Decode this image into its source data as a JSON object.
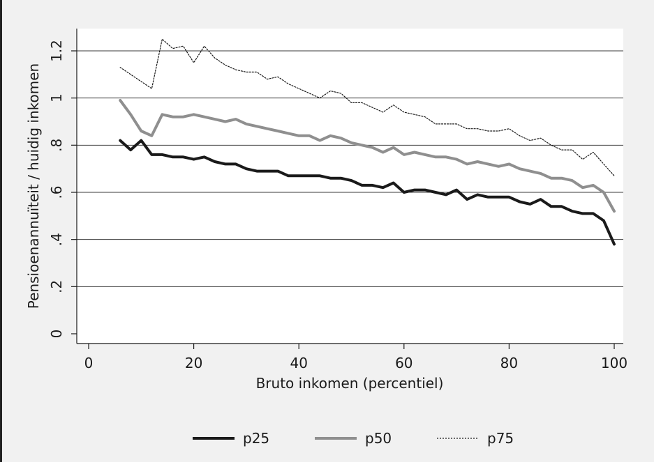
{
  "chart_data": {
    "type": "line",
    "xlabel": "Bruto inkomen (percentiel)",
    "ylabel": "Pensioenannuïteit / huidig inkomen",
    "xlim": [
      0,
      100
    ],
    "ylim": [
      0,
      1.2
    ],
    "xticks": [
      0,
      20,
      40,
      60,
      80,
      100
    ],
    "xtick_labels": [
      "0",
      "20",
      "40",
      "60",
      "80",
      "100"
    ],
    "yticks": [
      0,
      0.2,
      0.4,
      0.6,
      0.8,
      1,
      1.2
    ],
    "ytick_labels": [
      "0",
      ".2",
      ".4",
      ".6",
      ".8",
      "1",
      "1.2"
    ],
    "grid": true,
    "legend_position": "bottom",
    "x": [
      6,
      8,
      10,
      12,
      14,
      16,
      18,
      20,
      22,
      24,
      26,
      28,
      30,
      32,
      34,
      36,
      38,
      40,
      42,
      44,
      46,
      48,
      50,
      52,
      54,
      56,
      58,
      60,
      62,
      64,
      66,
      68,
      70,
      72,
      74,
      76,
      78,
      80,
      82,
      84,
      86,
      88,
      90,
      92,
      94,
      96,
      98,
      100
    ],
    "series": [
      {
        "name": "p25",
        "color": "#1a1a1a",
        "style": "solid-thick",
        "values": [
          0.82,
          0.78,
          0.82,
          0.76,
          0.76,
          0.75,
          0.75,
          0.74,
          0.75,
          0.73,
          0.72,
          0.72,
          0.7,
          0.69,
          0.69,
          0.69,
          0.67,
          0.67,
          0.67,
          0.67,
          0.66,
          0.66,
          0.65,
          0.63,
          0.63,
          0.62,
          0.64,
          0.6,
          0.61,
          0.61,
          0.6,
          0.59,
          0.61,
          0.57,
          0.59,
          0.58,
          0.58,
          0.58,
          0.56,
          0.55,
          0.57,
          0.54,
          0.54,
          0.52,
          0.51,
          0.51,
          0.48,
          0.38
        ]
      },
      {
        "name": "p50",
        "color": "#8f8f8f",
        "style": "solid-thick",
        "values": [
          0.99,
          0.93,
          0.86,
          0.84,
          0.93,
          0.92,
          0.92,
          0.93,
          0.92,
          0.91,
          0.9,
          0.91,
          0.89,
          0.88,
          0.87,
          0.86,
          0.85,
          0.84,
          0.84,
          0.82,
          0.84,
          0.83,
          0.81,
          0.8,
          0.79,
          0.77,
          0.79,
          0.76,
          0.77,
          0.76,
          0.75,
          0.75,
          0.74,
          0.72,
          0.73,
          0.72,
          0.71,
          0.72,
          0.7,
          0.69,
          0.68,
          0.66,
          0.66,
          0.65,
          0.62,
          0.63,
          0.6,
          0.52
        ]
      },
      {
        "name": "p75",
        "color": "#1a1a1a",
        "style": "dotted-thin",
        "values": [
          1.13,
          1.1,
          1.07,
          1.04,
          1.25,
          1.21,
          1.22,
          1.15,
          1.22,
          1.17,
          1.14,
          1.12,
          1.11,
          1.11,
          1.08,
          1.09,
          1.06,
          1.04,
          1.02,
          1.0,
          1.03,
          1.02,
          0.98,
          0.98,
          0.96,
          0.94,
          0.97,
          0.94,
          0.93,
          0.92,
          0.89,
          0.89,
          0.89,
          0.87,
          0.87,
          0.86,
          0.86,
          0.87,
          0.84,
          0.82,
          0.83,
          0.8,
          0.78,
          0.78,
          0.74,
          0.77,
          0.72,
          0.67
        ]
      }
    ]
  }
}
